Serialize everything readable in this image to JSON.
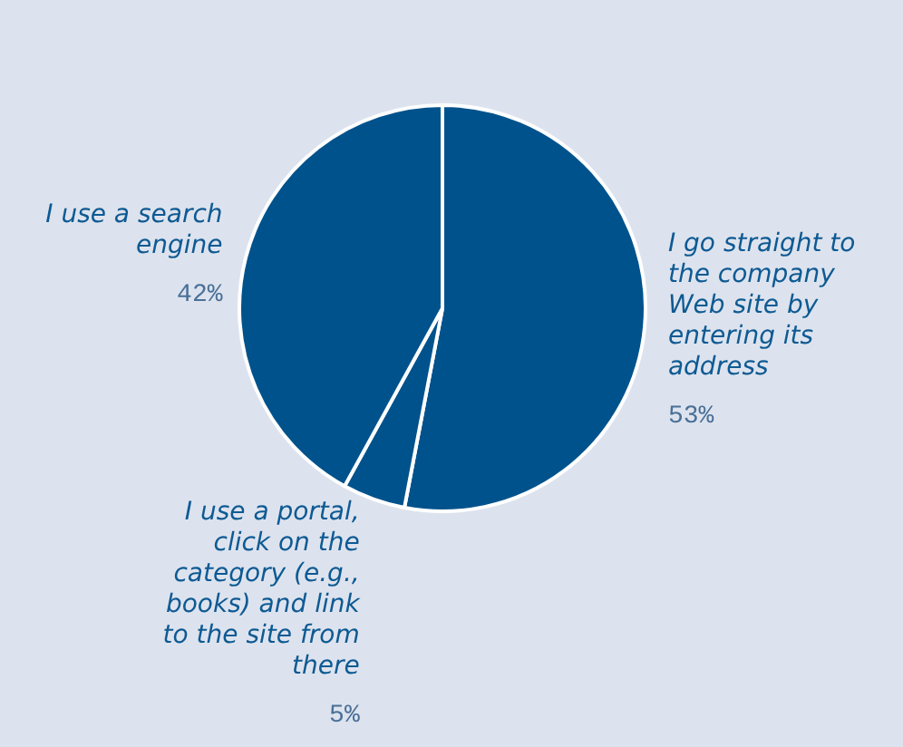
{
  "chart_data": {
    "type": "pie",
    "categories": [
      "I go straight to the company Web site by entering its address",
      "I use a portal, click on the category (e.g., books) and link to the site from there",
      "I use a search engine"
    ],
    "values": [
      53,
      5,
      42
    ],
    "value_labels": [
      "53%",
      "5%",
      "42%"
    ],
    "colors": [
      "#00528c",
      "#00528c",
      "#00528c"
    ],
    "legend": false
  }
}
